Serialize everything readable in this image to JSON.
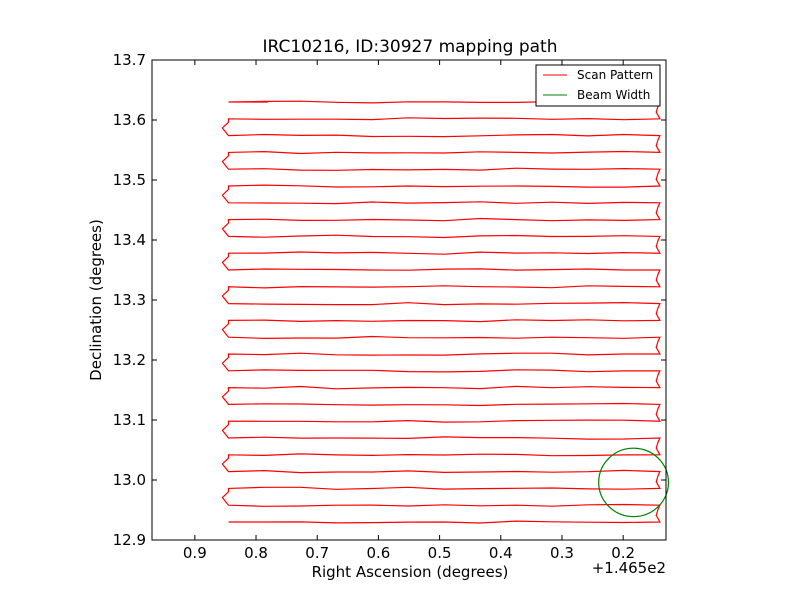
{
  "chart_data": {
    "type": "line",
    "title": "IRC10216, ID:30927 mapping path",
    "xlabel": "Right Ascension (degrees)",
    "ylabel": "Declination (degrees)",
    "x_offset_label": "+1.465e2",
    "xlim": [
      0.97,
      0.13
    ],
    "ylim": [
      12.9,
      13.7
    ],
    "x_ticks": [
      0.9,
      0.8,
      0.7,
      0.6,
      0.5,
      0.4,
      0.3,
      0.2
    ],
    "x_tick_labels": [
      "0.9",
      "0.8",
      "0.7",
      "0.6",
      "0.5",
      "0.4",
      "0.3",
      "0.2"
    ],
    "y_ticks": [
      12.9,
      13.0,
      13.1,
      13.2,
      13.3,
      13.4,
      13.5,
      13.6,
      13.7
    ],
    "y_tick_labels": [
      "12.9",
      "13.0",
      "13.1",
      "13.2",
      "13.3",
      "13.4",
      "13.5",
      "13.6",
      "13.7"
    ],
    "grid": false,
    "legend_position": "top-right",
    "colors": {
      "scan": "#ff0000",
      "beam": "#008000",
      "axes": "#000000"
    },
    "series": [
      {
        "name": "Scan Pattern",
        "color": "#ff0000",
        "scan": {
          "start_dec": 12.93,
          "end_dec": 13.63,
          "rows": 26,
          "ra_east": 0.14,
          "ra_west": 0.845,
          "ra_west_turn": 0.855,
          "ra_end": 0.78
        }
      },
      {
        "name": "Beam Width",
        "color": "#008000",
        "circle": {
          "center_ra": 0.183,
          "center_dec": 12.996,
          "radius_ra": 0.057,
          "radius_dec": 0.057
        }
      }
    ]
  }
}
